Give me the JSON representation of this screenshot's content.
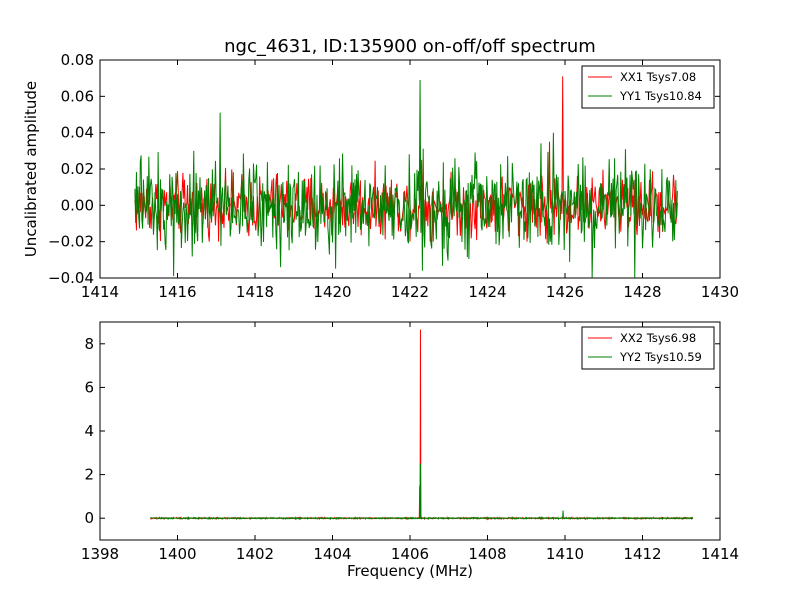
{
  "figure": {
    "title": "ngc_4631, ID:135900 on-off/off spectrum"
  },
  "colors": {
    "series1": "#ff0000",
    "series2": "#008000",
    "axes": "#000000",
    "background": "#ffffff"
  },
  "chart_data": [
    {
      "type": "line",
      "title": "ngc_4631, ID:135900 on-off/off spectrum",
      "xlabel": "",
      "ylabel": "Uncalibrated amplitude",
      "xlim": [
        1414,
        1430
      ],
      "ylim": [
        -0.04,
        0.08
      ],
      "xticks": [
        1414,
        1416,
        1418,
        1420,
        1422,
        1424,
        1426,
        1428,
        1430
      ],
      "xtick_labels": [
        "1414",
        "1416",
        "1418",
        "1420",
        "1422",
        "1424",
        "1426",
        "1428",
        "1430"
      ],
      "yticks": [
        -0.04,
        -0.02,
        0.0,
        0.02,
        0.04,
        0.06,
        0.08
      ],
      "ytick_labels": [
        "−0.04",
        "−0.02",
        "0.00",
        "0.02",
        "0.04",
        "0.06",
        "0.08"
      ],
      "grid": false,
      "legend_position": "top-right",
      "x_range": [
        1414.9,
        1428.9
      ],
      "series": [
        {
          "name": "XX1 Tsys7.08",
          "color": "#ff0000",
          "noise_amplitude": 0.012,
          "clip": [
            -0.02,
            0.028
          ],
          "spikes": [
            {
              "x": 1425.95,
              "y": 0.071
            },
            {
              "x": 1425.6,
              "y": 0.035
            },
            {
              "x": 1422.3,
              "y": 0.025
            },
            {
              "x": 1425.55,
              "y": -0.021
            }
          ]
        },
        {
          "name": "YY1 Tsys10.84",
          "color": "#008000",
          "noise_amplitude": 0.018,
          "clip": [
            -0.04,
            0.035
          ],
          "spikes": [
            {
              "x": 1422.27,
              "y": 0.069
            },
            {
              "x": 1417.1,
              "y": 0.051
            },
            {
              "x": 1425.7,
              "y": 0.04
            },
            {
              "x": 1422.32,
              "y": -0.036
            },
            {
              "x": 1415.9,
              "y": -0.039
            },
            {
              "x": 1426.7,
              "y": -0.04
            },
            {
              "x": 1427.8,
              "y": -0.04
            }
          ]
        }
      ]
    },
    {
      "type": "line",
      "title": "",
      "xlabel": "Frequency (MHz)",
      "ylabel": "",
      "xlim": [
        1398,
        1414
      ],
      "ylim": [
        -1,
        9
      ],
      "xticks": [
        1398,
        1400,
        1402,
        1404,
        1406,
        1408,
        1410,
        1412,
        1414
      ],
      "xtick_labels": [
        "1398",
        "1400",
        "1402",
        "1404",
        "1406",
        "1408",
        "1410",
        "1412",
        "1414"
      ],
      "yticks": [
        0,
        2,
        4,
        6,
        8
      ],
      "ytick_labels": [
        "0",
        "2",
        "4",
        "6",
        "8"
      ],
      "grid": false,
      "legend_position": "top-right",
      "x_range": [
        1399.3,
        1413.3
      ],
      "series": [
        {
          "name": "XX2 Tsys6.98",
          "color": "#ff0000",
          "noise_amplitude": 0.02,
          "spikes": [
            {
              "x": 1406.27,
              "y": 8.65
            },
            {
              "x": 1406.25,
              "y": 1.5
            }
          ]
        },
        {
          "name": "YY2 Tsys10.59",
          "color": "#008000",
          "noise_amplitude": 0.02,
          "spikes": [
            {
              "x": 1406.27,
              "y": 2.5
            },
            {
              "x": 1409.95,
              "y": 0.35
            }
          ]
        }
      ]
    }
  ]
}
